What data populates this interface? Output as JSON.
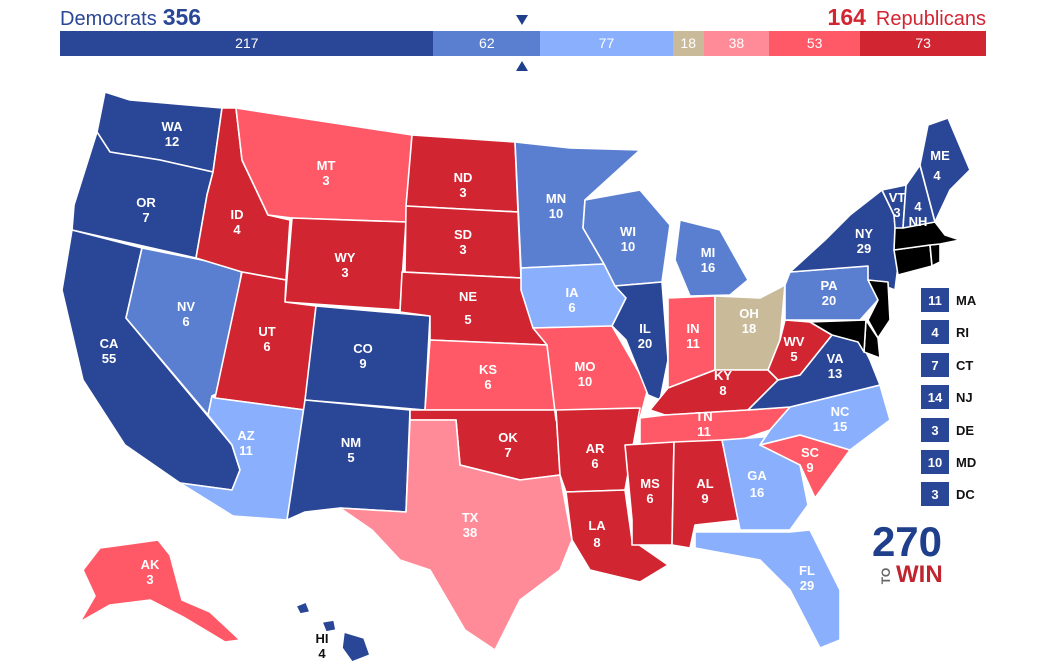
{
  "header": {
    "dem_label": "Democrats",
    "dem_total": "356",
    "rep_label": "Republicans",
    "rep_total": "164"
  },
  "colors": {
    "solid_d": "#2a4696",
    "likely_d": "#5b7fd0",
    "lean_d": "#8aaffc",
    "tossup": "#c9bb9a",
    "lean_r": "#ff8b98",
    "likely_r": "#ff5866",
    "solid_r": "#d22532"
  },
  "bar": [
    {
      "rating": "solid_d",
      "value": 217
    },
    {
      "rating": "likely_d",
      "value": 62
    },
    {
      "rating": "lean_d",
      "value": 77
    },
    {
      "rating": "tossup",
      "value": 18
    },
    {
      "rating": "lean_r",
      "value": 38
    },
    {
      "rating": "likely_r",
      "value": 53
    },
    {
      "rating": "solid_r",
      "value": 73
    }
  ],
  "states": {
    "WA": {
      "abbr": "WA",
      "ev": "12",
      "rating": "solid_d"
    },
    "OR": {
      "abbr": "OR",
      "ev": "7",
      "rating": "solid_d"
    },
    "CA": {
      "abbr": "CA",
      "ev": "55",
      "rating": "solid_d"
    },
    "NV": {
      "abbr": "NV",
      "ev": "6",
      "rating": "likely_d"
    },
    "ID": {
      "abbr": "ID",
      "ev": "4",
      "rating": "solid_r"
    },
    "MT": {
      "abbr": "MT",
      "ev": "3",
      "rating": "likely_r"
    },
    "WY": {
      "abbr": "WY",
      "ev": "3",
      "rating": "solid_r"
    },
    "UT": {
      "abbr": "UT",
      "ev": "6",
      "rating": "solid_r"
    },
    "AZ": {
      "abbr": "AZ",
      "ev": "11",
      "rating": "lean_d"
    },
    "CO": {
      "abbr": "CO",
      "ev": "9",
      "rating": "solid_d"
    },
    "NM": {
      "abbr": "NM",
      "ev": "5",
      "rating": "solid_d"
    },
    "ND": {
      "abbr": "ND",
      "ev": "3",
      "rating": "solid_r"
    },
    "SD": {
      "abbr": "SD",
      "ev": "3",
      "rating": "solid_r"
    },
    "NE": {
      "abbr": "NE",
      "ev": "5",
      "rating": "solid_r"
    },
    "KS": {
      "abbr": "KS",
      "ev": "6",
      "rating": "likely_r"
    },
    "OK": {
      "abbr": "OK",
      "ev": "7",
      "rating": "solid_r"
    },
    "TX": {
      "abbr": "TX",
      "ev": "38",
      "rating": "lean_r"
    },
    "MN": {
      "abbr": "MN",
      "ev": "10",
      "rating": "likely_d"
    },
    "IA": {
      "abbr": "IA",
      "ev": "6",
      "rating": "lean_d"
    },
    "MO": {
      "abbr": "MO",
      "ev": "10",
      "rating": "likely_r"
    },
    "AR": {
      "abbr": "AR",
      "ev": "6",
      "rating": "solid_r"
    },
    "LA": {
      "abbr": "LA",
      "ev": "8",
      "rating": "solid_r"
    },
    "WI": {
      "abbr": "WI",
      "ev": "10",
      "rating": "likely_d"
    },
    "IL": {
      "abbr": "IL",
      "ev": "20",
      "rating": "solid_d"
    },
    "MI": {
      "abbr": "MI",
      "ev": "16",
      "rating": "likely_d"
    },
    "IN": {
      "abbr": "IN",
      "ev": "11",
      "rating": "likely_r"
    },
    "OH": {
      "abbr": "OH",
      "ev": "18",
      "rating": "tossup"
    },
    "KY": {
      "abbr": "KY",
      "ev": "8",
      "rating": "solid_r"
    },
    "TN": {
      "abbr": "TN",
      "ev": "11",
      "rating": "likely_r"
    },
    "MS": {
      "abbr": "MS",
      "ev": "6",
      "rating": "solid_r"
    },
    "AL": {
      "abbr": "AL",
      "ev": "9",
      "rating": "solid_r"
    },
    "GA": {
      "abbr": "GA",
      "ev": "16",
      "rating": "lean_d"
    },
    "FL": {
      "abbr": "FL",
      "ev": "29",
      "rating": "lean_d"
    },
    "SC": {
      "abbr": "SC",
      "ev": "9",
      "rating": "likely_r"
    },
    "NC": {
      "abbr": "NC",
      "ev": "15",
      "rating": "lean_d"
    },
    "VA": {
      "abbr": "VA",
      "ev": "13",
      "rating": "solid_d"
    },
    "WV": {
      "abbr": "WV",
      "ev": "5",
      "rating": "solid_r"
    },
    "PA": {
      "abbr": "PA",
      "ev": "20",
      "rating": "likely_d"
    },
    "NY": {
      "abbr": "NY",
      "ev": "29",
      "rating": "solid_d"
    },
    "VT": {
      "abbr": "VT",
      "ev": "3",
      "rating": "solid_d"
    },
    "NH": {
      "abbr": "NH",
      "ev": "4",
      "rating": "solid_d"
    },
    "ME": {
      "abbr": "ME",
      "ev": "4",
      "rating": "solid_d"
    },
    "AK": {
      "abbr": "AK",
      "ev": "3",
      "rating": "likely_r"
    },
    "HI": {
      "abbr": "HI",
      "ev": "4",
      "rating": "solid_d"
    }
  },
  "small_states": [
    {
      "abbr": "MA",
      "ev": "11",
      "rating": "solid_d"
    },
    {
      "abbr": "RI",
      "ev": "4",
      "rating": "solid_d"
    },
    {
      "abbr": "CT",
      "ev": "7",
      "rating": "solid_d"
    },
    {
      "abbr": "NJ",
      "ev": "14",
      "rating": "solid_d"
    },
    {
      "abbr": "DE",
      "ev": "3",
      "rating": "solid_d"
    },
    {
      "abbr": "MD",
      "ev": "10",
      "rating": "solid_d"
    },
    {
      "abbr": "DC",
      "ev": "3",
      "rating": "solid_d"
    }
  ],
  "logo": {
    "number": "270",
    "to": "TO",
    "win": "WIN"
  }
}
